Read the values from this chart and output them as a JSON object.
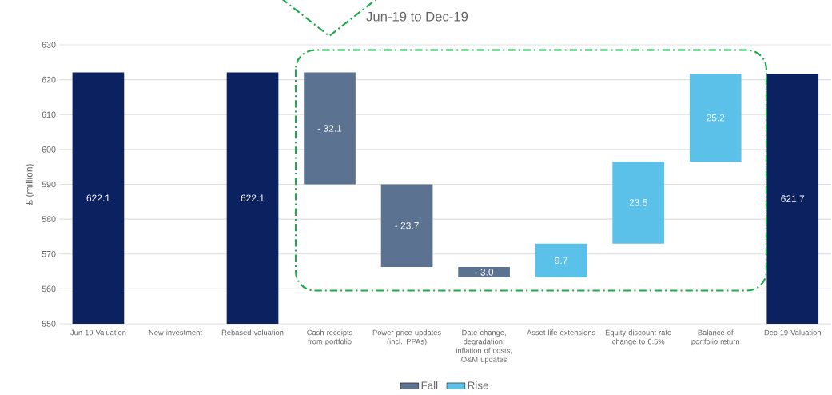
{
  "chart_data": {
    "type": "bar",
    "annotations": [
      "Jun-19 to Dec-19"
    ],
    "ylabel": "£ (million)",
    "categories": [
      "Jun-19 Valuation",
      "New investment",
      "Rebased valuation",
      "Cash receipts from portfolio",
      "Power price updates (incl. PPAs)",
      "Date change, degradation, inflation of costs, O&M updates",
      "Asset life extensions",
      "Equity discount rate change to 6.5%",
      "Balance of portfolio return",
      "Dec-19 Valuation"
    ],
    "series": [
      {
        "color": "#0c2160",
        "values": [
          622.1,
          null,
          622.1,
          null,
          null,
          null,
          null,
          null,
          null,
          621.7
        ],
        "value_labels": [
          "622.1",
          null,
          "622.1",
          null,
          null,
          null,
          null,
          null,
          null,
          "621.7"
        ]
      },
      {
        "name": "Fall",
        "color": "#5b7391",
        "base": [
          null,
          null,
          null,
          622.1,
          590.0,
          566.3,
          null,
          null,
          null,
          null
        ],
        "values": [
          null,
          null,
          null,
          -32.1,
          -23.7,
          -3.0,
          null,
          null,
          null,
          null
        ],
        "value_labels": [
          null,
          null,
          null,
          "- 32.1",
          "- 23.7",
          "- 3.0",
          null,
          null,
          null,
          null
        ]
      },
      {
        "name": "Rise",
        "color": "#5bc1e9",
        "base": [
          null,
          null,
          null,
          null,
          null,
          null,
          563.3,
          573.0,
          596.5,
          null
        ],
        "values": [
          null,
          null,
          null,
          null,
          null,
          null,
          9.7,
          23.5,
          25.2,
          null
        ],
        "value_labels": [
          null,
          null,
          null,
          null,
          null,
          null,
          "9.7",
          "23.5",
          "25.2",
          null
        ]
      }
    ],
    "ylim": [
      550,
      630
    ],
    "yticks": [
      550,
      560,
      570,
      580,
      590,
      600,
      610,
      620,
      630
    ],
    "grid": "y",
    "legend": "bottom"
  }
}
